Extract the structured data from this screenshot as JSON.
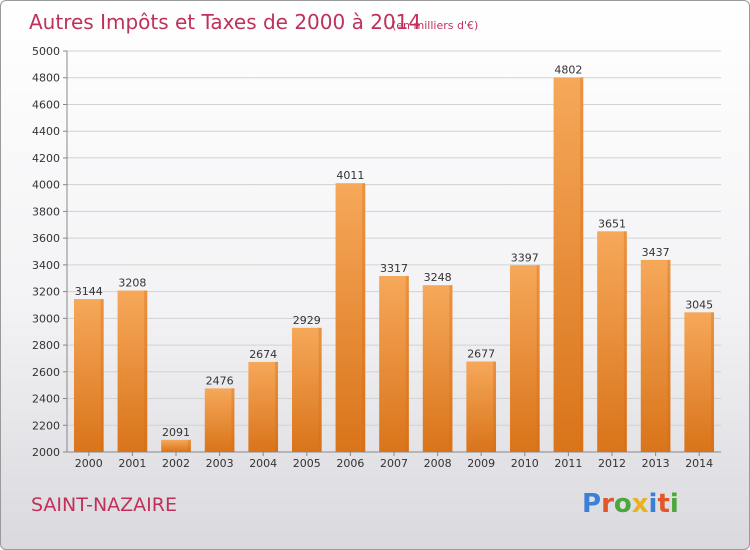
{
  "chart_data": {
    "type": "bar",
    "title": "Autres Impôts et Taxes de 2000 à 2014",
    "subtitle": "(en milliers d'€)",
    "categories": [
      "2000",
      "2001",
      "2002",
      "2003",
      "2004",
      "2005",
      "2006",
      "2007",
      "2008",
      "2009",
      "2010",
      "2011",
      "2012",
      "2013",
      "2014"
    ],
    "values": [
      3144,
      3208,
      2091,
      2476,
      2674,
      2929,
      4011,
      3317,
      3248,
      2677,
      3397,
      4802,
      3651,
      3437,
      3045
    ],
    "ylim": [
      2000,
      5000
    ],
    "yticks": [
      2000,
      2200,
      2400,
      2600,
      2800,
      3000,
      3200,
      3400,
      3600,
      3800,
      4000,
      4200,
      4400,
      4600,
      4800,
      5000
    ],
    "xlabel": "",
    "ylabel": "",
    "grid": true,
    "bar_color": "#f0932e",
    "bar_color_dark": "#d86b12"
  },
  "footer": {
    "location": "SAINT-NAZAIRE",
    "brand": "Proxiti",
    "brand_colors": [
      "#3b7fd6",
      "#e0572c",
      "#4aa83a",
      "#e8b21f",
      "#3b7fd6",
      "#e0572c",
      "#4aa83a"
    ]
  }
}
